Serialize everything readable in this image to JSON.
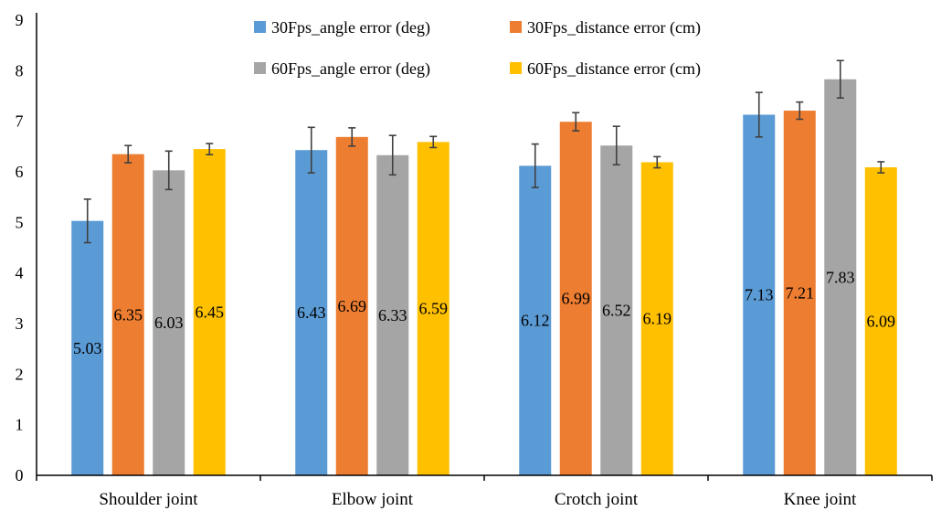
{
  "chart_data": {
    "type": "bar",
    "title": "",
    "xlabel": "",
    "ylabel": "",
    "ylim": [
      0,
      9
    ],
    "yticks": [
      0,
      1,
      2,
      3,
      4,
      5,
      6,
      7,
      8,
      9
    ],
    "grid": false,
    "legend_position": "top",
    "categories": [
      "Shoulder joint",
      "Elbow joint",
      "Crotch joint",
      "Knee joint"
    ],
    "series": [
      {
        "name": "30Fps_angle error (deg)",
        "color": "#5B9BD5",
        "values": [
          5.03,
          6.43,
          6.12,
          7.13
        ],
        "errors": [
          0.43,
          0.45,
          0.43,
          0.44
        ]
      },
      {
        "name": "30Fps_distance error (cm)",
        "color": "#ED7D31",
        "values": [
          6.35,
          6.69,
          6.99,
          7.21
        ],
        "errors": [
          0.17,
          0.18,
          0.18,
          0.17
        ]
      },
      {
        "name": "60Fps_angle error (deg)",
        "color": "#A5A5A5",
        "values": [
          6.03,
          6.33,
          6.52,
          7.83
        ],
        "errors": [
          0.38,
          0.39,
          0.38,
          0.37
        ]
      },
      {
        "name": "60Fps_distance error (cm)",
        "color": "#FFC000",
        "values": [
          6.45,
          6.59,
          6.19,
          6.09
        ],
        "errors": [
          0.11,
          0.11,
          0.11,
          0.11
        ]
      }
    ]
  }
}
